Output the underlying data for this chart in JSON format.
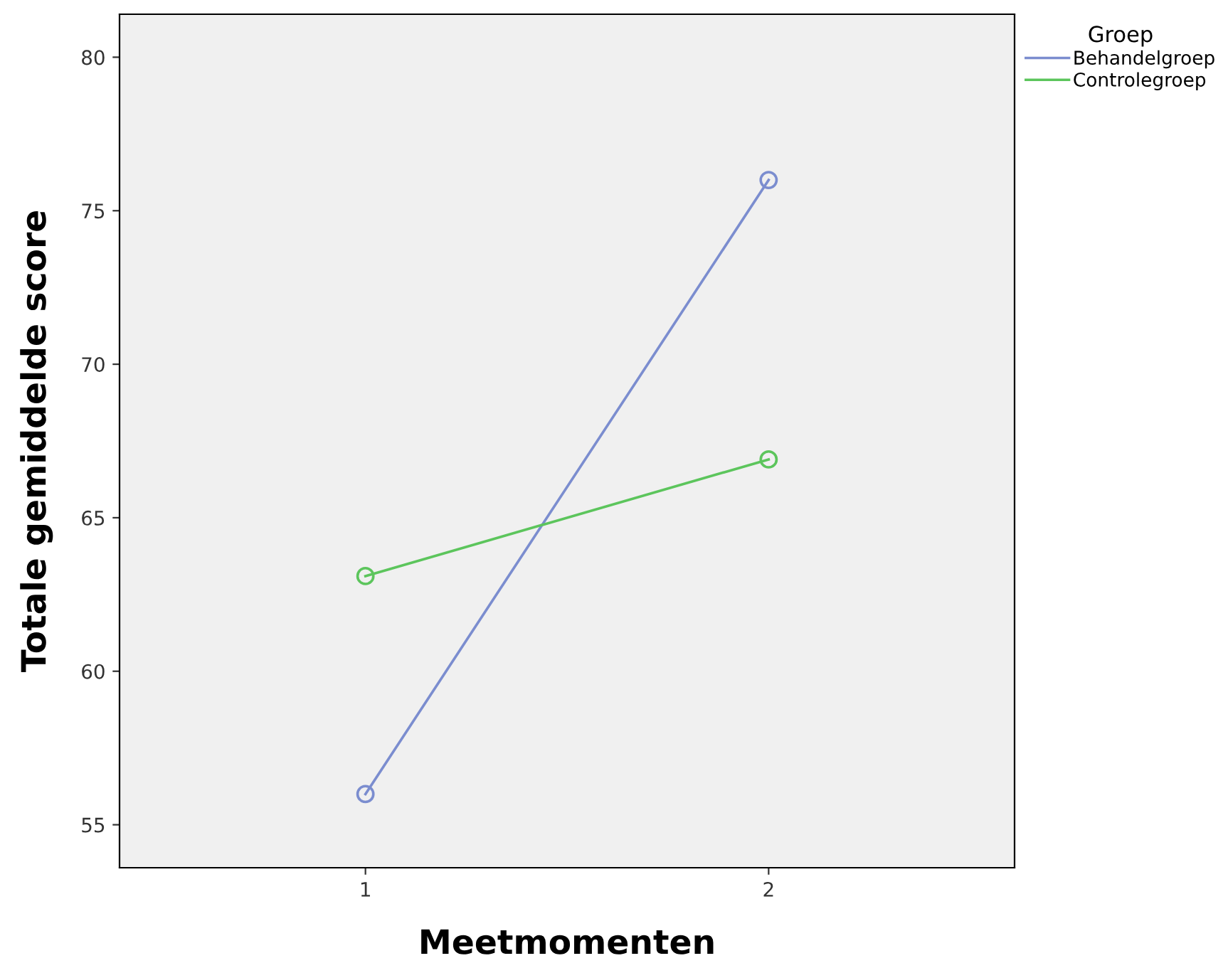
{
  "chart_data": {
    "type": "line",
    "xlabel": "Meetmomenten",
    "ylabel": "Totale gemiddelde score",
    "legend_title": "Groep",
    "categories": [
      "1",
      "2"
    ],
    "series": [
      {
        "name": "Behandelgroep",
        "color": "#7b8dcf",
        "values": [
          56.0,
          76.0
        ]
      },
      {
        "name": "Controlegroep",
        "color": "#5cc55c",
        "values": [
          63.1,
          66.9
        ]
      }
    ],
    "ylim": [
      53.6,
      81.4
    ],
    "yticks": [
      55,
      60,
      65,
      70,
      75,
      80
    ],
    "grid": false,
    "legend": "top right",
    "marker": "circle",
    "line_style": "solid"
  }
}
